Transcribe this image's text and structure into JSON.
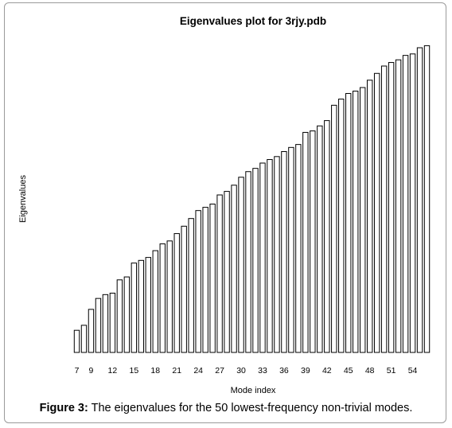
{
  "chart_data": {
    "type": "bar",
    "title": "Eigenvalues plot for 3rjy.pdb",
    "xlabel": "Mode index",
    "ylabel": "Eigenvalues",
    "x_tick_labels": [
      "7",
      "9",
      "12",
      "15",
      "18",
      "21",
      "24",
      "27",
      "30",
      "33",
      "36",
      "39",
      "42",
      "45",
      "48",
      "51",
      "54"
    ],
    "modes": [
      7,
      8,
      9,
      10,
      11,
      12,
      13,
      14,
      15,
      16,
      17,
      18,
      19,
      20,
      21,
      22,
      23,
      24,
      25,
      26,
      27,
      28,
      29,
      30,
      31,
      32,
      33,
      34,
      35,
      36,
      37,
      38,
      39,
      40,
      41,
      42,
      43,
      44,
      45,
      46,
      47,
      48,
      49,
      50,
      51,
      52,
      53,
      54,
      55,
      56
    ],
    "values": [
      0.075,
      0.092,
      0.146,
      0.183,
      0.196,
      0.201,
      0.246,
      0.256,
      0.303,
      0.312,
      0.322,
      0.345,
      0.368,
      0.378,
      0.403,
      0.428,
      0.454,
      0.481,
      0.492,
      0.503,
      0.534,
      0.546,
      0.567,
      0.594,
      0.613,
      0.624,
      0.642,
      0.654,
      0.664,
      0.681,
      0.695,
      0.705,
      0.746,
      0.751,
      0.768,
      0.786,
      0.838,
      0.859,
      0.878,
      0.886,
      0.898,
      0.923,
      0.946,
      0.971,
      0.983,
      0.992,
      1.007,
      1.012,
      1.033,
      1.04
    ],
    "ylim": [
      0,
      1.06
    ],
    "y_axis_visible": false,
    "grid": false,
    "legend": "none",
    "bar_fill": "#ffffff",
    "bar_edge": "#000000"
  },
  "caption": {
    "label": "Figure 3:",
    "text": " The eigenvalues for the 50 lowest-frequency non-trivial modes."
  }
}
